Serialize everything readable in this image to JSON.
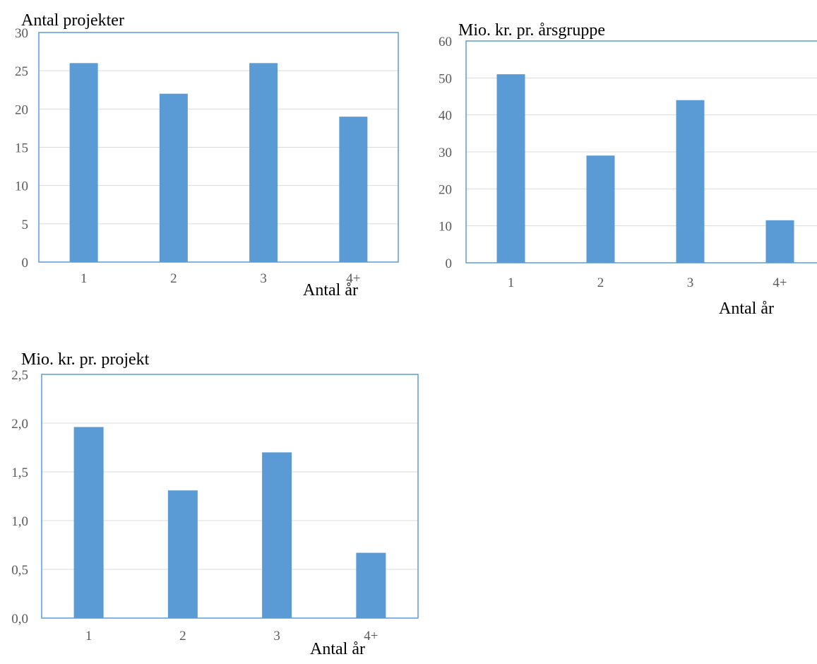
{
  "colors": {
    "bar": "#5b9bd5",
    "frame": "#5b9bd5",
    "grid": "#d9d9d9",
    "tick_text": "#595959"
  },
  "chart_data": [
    {
      "type": "bar",
      "title": "Antal projekter",
      "xlabel": "Antal år",
      "ylabel": "",
      "categories": [
        "1",
        "2",
        "3",
        "4+"
      ],
      "values": [
        26,
        22,
        26,
        19
      ],
      "ylim": [
        0,
        30
      ],
      "yticks": [
        "0",
        "5",
        "10",
        "15",
        "20",
        "25",
        "30"
      ],
      "grid": true,
      "legend": "none"
    },
    {
      "type": "bar",
      "title": "Mio. kr. pr. årsgruppe",
      "xlabel": "Antal år",
      "ylabel": "",
      "categories": [
        "1",
        "2",
        "3",
        "4+"
      ],
      "values": [
        51,
        29,
        44,
        11.5
      ],
      "ylim": [
        0,
        60
      ],
      "yticks": [
        "0",
        "10",
        "20",
        "30",
        "40",
        "50",
        "60"
      ],
      "grid": true,
      "legend": "none"
    },
    {
      "type": "bar",
      "title": "Mio. kr. pr. projekt",
      "xlabel": "Antal år",
      "ylabel": "",
      "categories": [
        "1",
        "2",
        "3",
        "4+"
      ],
      "values": [
        1.96,
        1.31,
        1.7,
        0.67
      ],
      "ylim": [
        0,
        2.5
      ],
      "yticks": [
        "0,0",
        "0,5",
        "1,0",
        "1,5",
        "2,0",
        "2,5"
      ],
      "grid": true,
      "legend": "none"
    }
  ]
}
